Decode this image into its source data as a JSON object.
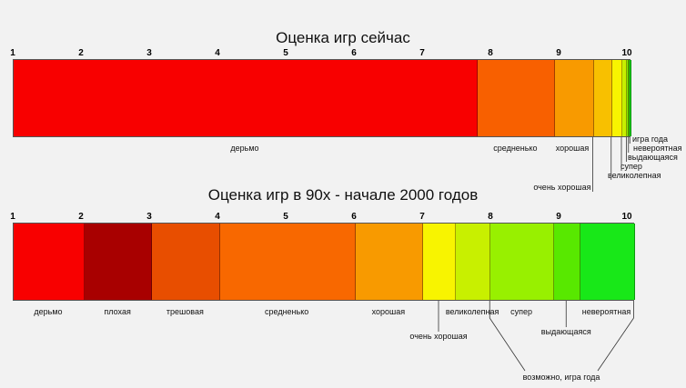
{
  "chart_data": [
    {
      "type": "bar",
      "title": "Оценка игр сейчас",
      "xlim": [
        1,
        10
      ],
      "ticks": [
        "1",
        "2",
        "3",
        "4",
        "5",
        "6",
        "7",
        "8",
        "9",
        "10"
      ],
      "segments": [
        {
          "label": "дерьмо",
          "from": 1.0,
          "to": 7.8,
          "color": "#f80000"
        },
        {
          "label": "средненько",
          "from": 7.8,
          "to": 8.93,
          "color": "#f86000"
        },
        {
          "label": "хорошая",
          "from": 8.93,
          "to": 9.5,
          "color": "#f89a00"
        },
        {
          "label": "очень хорошая",
          "from": 9.5,
          "to": 9.77,
          "color": "#f8c000"
        },
        {
          "label": "великолепная",
          "from": 9.77,
          "to": 9.92,
          "color": "#f8f400"
        },
        {
          "label": "супер",
          "from": 9.92,
          "to": 9.98,
          "color": "#c8f000"
        },
        {
          "label": "выдающаяся",
          "from": 9.98,
          "to": 10.01,
          "color": "#88e800"
        },
        {
          "label": "невероятная",
          "from": 10.01,
          "to": 10.03,
          "color": "#50e000"
        },
        {
          "label": "игра года",
          "from": 10.03,
          "to": 10.05,
          "color": "#18d818"
        }
      ]
    },
    {
      "type": "bar",
      "title": "Оценка игр в 90х - начале 2000 годов",
      "xlim": [
        1,
        10
      ],
      "ticks": [
        "1",
        "2",
        "3",
        "4",
        "5",
        "6",
        "7",
        "8",
        "9",
        "10"
      ],
      "segments": [
        {
          "label": "дерьмо",
          "from": 1.0,
          "to": 2.04,
          "color": "#f80000"
        },
        {
          "label": "плохая",
          "from": 2.04,
          "to": 3.03,
          "color": "#a80000"
        },
        {
          "label": "трешовая",
          "from": 3.03,
          "to": 4.02,
          "color": "#e84e00"
        },
        {
          "label": "средненько",
          "from": 4.02,
          "to": 6.01,
          "color": "#f86800"
        },
        {
          "label": "хорошая",
          "from": 6.01,
          "to": 7.0,
          "color": "#f89a00"
        },
        {
          "label": "очень хорошая",
          "from": 7.0,
          "to": 7.48,
          "color": "#f8f400"
        },
        {
          "label": "великолепная",
          "from": 7.48,
          "to": 7.99,
          "color": "#c8f000"
        },
        {
          "label": "супер",
          "from": 7.99,
          "to": 8.92,
          "color": "#98f000"
        },
        {
          "label": "выдающаяся",
          "from": 8.92,
          "to": 9.3,
          "color": "#58e800"
        },
        {
          "label": "невероятная",
          "from": 9.3,
          "to": 10.1,
          "color": "#18e818"
        }
      ],
      "annotation": "возможно, игра года"
    }
  ]
}
